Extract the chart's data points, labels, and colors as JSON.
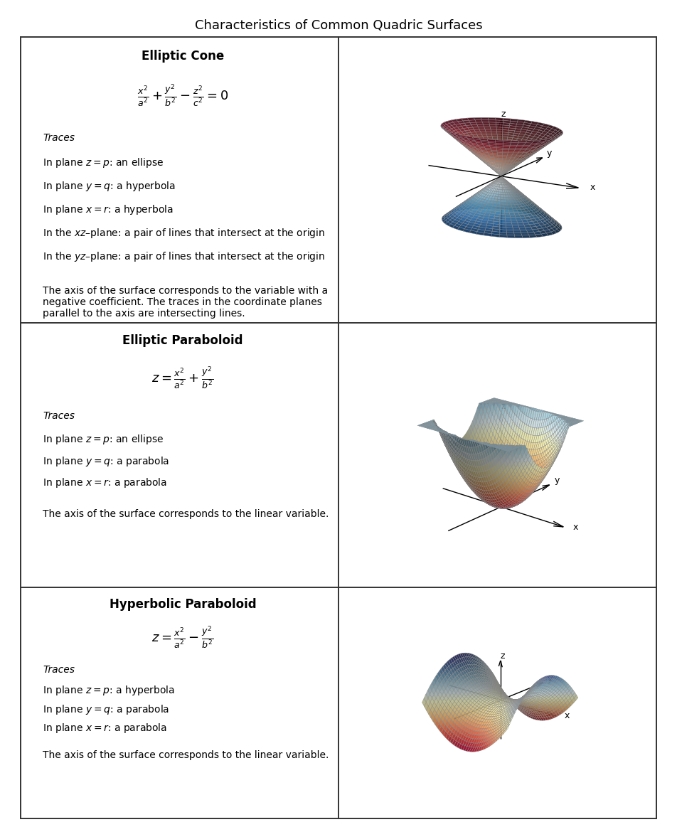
{
  "title": "Characteristics of Common Quadric Surfaces",
  "rows": [
    {
      "name": "Elliptic Cone",
      "equation": "\\frac{x^2}{a^2} + \\frac{y^2}{b^2} - \\frac{z^2}{c^2} = 0",
      "traces_header": "Traces",
      "traces": [
        "In plane $z = p$: an ellipse",
        "In plane $y = q$: a hyperbola",
        "In plane $x = r$: a hyperbola",
        "In the $xz$–plane: a pair of lines that intersect at the origin",
        "In the $yz$–plane: a pair of lines that intersect at the origin"
      ],
      "note": "The axis of the surface corresponds to the variable with a\nnegative coefficient. The traces in the coordinate planes\nparallel to the axis are intersecting lines.",
      "surface": "cone"
    },
    {
      "name": "Elliptic Paraboloid",
      "equation": "z = \\frac{x^2}{a^2} + \\frac{y^2}{b^2}",
      "traces_header": "Traces",
      "traces": [
        "In plane $z = p$: an ellipse",
        "In plane $y = q$: a parabola",
        "In plane $x = r$: a parabola"
      ],
      "note": "The axis of the surface corresponds to the linear variable.",
      "surface": "elliptic_paraboloid"
    },
    {
      "name": "Hyperbolic Paraboloid",
      "equation": "z = \\frac{x^2}{a^2} - \\frac{y^2}{b^2}",
      "traces_header": "Traces",
      "traces": [
        "In plane $z = p$: a hyperbola",
        "In plane $y = q$: a parabola",
        "In plane $x = r$: a parabola"
      ],
      "note": "The axis of the surface corresponds to the linear variable.",
      "surface": "hyperbolic_paraboloid"
    }
  ],
  "bg_color": "#ffffff",
  "border_color": "#333333",
  "title_fontsize": 13,
  "name_fontsize": 12,
  "text_fontsize": 10,
  "eq_fontsize": 13
}
